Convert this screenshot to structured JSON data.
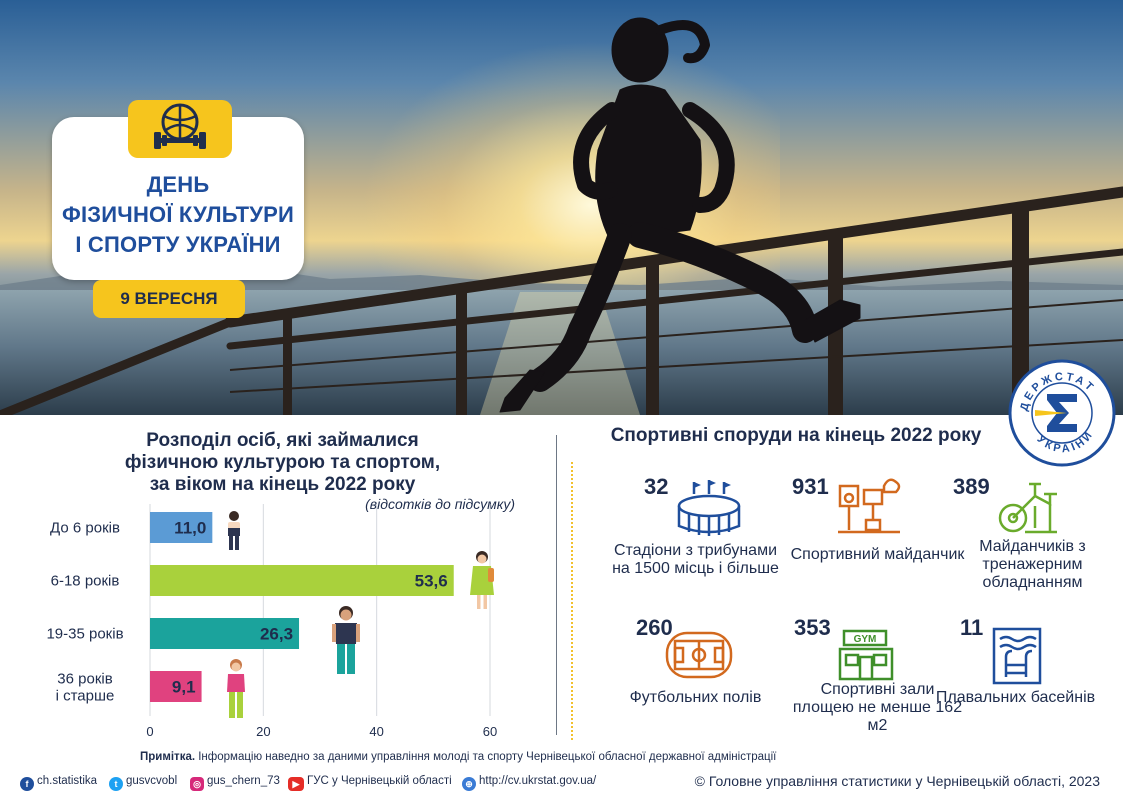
{
  "hero": {
    "title_lines": [
      "ДЕНЬ",
      "ФІЗИЧНОЇ КУЛЬТУРИ",
      "І СПОРТУ УКРАЇНИ"
    ],
    "date": "9 ВЕРЕСНЯ",
    "badge_icon": "ball-dumbbell-icon",
    "logo_text": "ДЕРЖСТАТ УКРАЇНИ"
  },
  "chart_data": {
    "type": "bar",
    "orientation": "horizontal",
    "title_lines": [
      "Розподіл осіб, які займалися",
      "фізичною культурою та спортом,",
      "за віком на кінець 2022 року"
    ],
    "subtitle": "(відсотків до підсумку)",
    "categories": [
      "До 6 років",
      "6-18 років",
      "19-35 років",
      "36 років\nі старше"
    ],
    "values": [
      11.0,
      53.6,
      26.3,
      9.1
    ],
    "value_labels": [
      "11,0",
      "53,6",
      "26,3",
      "9,1"
    ],
    "colors": [
      "#5b9bd5",
      "#a9d13c",
      "#1ba39c",
      "#e0427f"
    ],
    "xlim": [
      0,
      60
    ],
    "xticks": [
      0,
      20,
      40,
      60
    ],
    "grid": true,
    "legend": "none"
  },
  "facilities": {
    "title": "Спортивні споруди на кінець 2022 року",
    "items": [
      {
        "num": "32",
        "label": "Стадіони з трибунами на 1500 місць і більше",
        "icon": "stadium-icon",
        "color": "#1f4e9c"
      },
      {
        "num": "931",
        "label": "Спортивний майданчик",
        "icon": "sports-ground-icon",
        "color": "#d2691e"
      },
      {
        "num": "389",
        "label": "Майданчиків з тренажерним обладнанням",
        "icon": "exercise-bike-icon",
        "color": "#6aab2c"
      },
      {
        "num": "260",
        "label": "Футбольних полів",
        "icon": "football-field-icon",
        "color": "#d2691e"
      },
      {
        "num": "353",
        "label": "Спортивні зали площею не менше 162 м2",
        "icon": "gym-icon",
        "color": "#3f8f2a"
      },
      {
        "num": "11",
        "label": "Плавальних басейнів",
        "icon": "swimming-pool-icon",
        "color": "#1f4e9c"
      }
    ],
    "gym_text": "GYM"
  },
  "note": {
    "label": "Примітка.",
    "text": " Інформацію наведно за даними управління молоді та спорту Чернівецької обласної державної адміністрації"
  },
  "footer": {
    "facebook": "ch.statistika",
    "twitter": "gusvcvobl",
    "instagram": "gus_chern_73",
    "youtube": "ГУС у Чернівецькій області",
    "website": "http://cv.ukrstat.gov.ua/",
    "copyright": "© Головне управління статистики у Чернівецькій  області, 2023"
  },
  "colors": {
    "accent_yellow": "#f6c51d",
    "title_blue": "#1f4e9c",
    "text_dark": "#1f2d4d"
  }
}
